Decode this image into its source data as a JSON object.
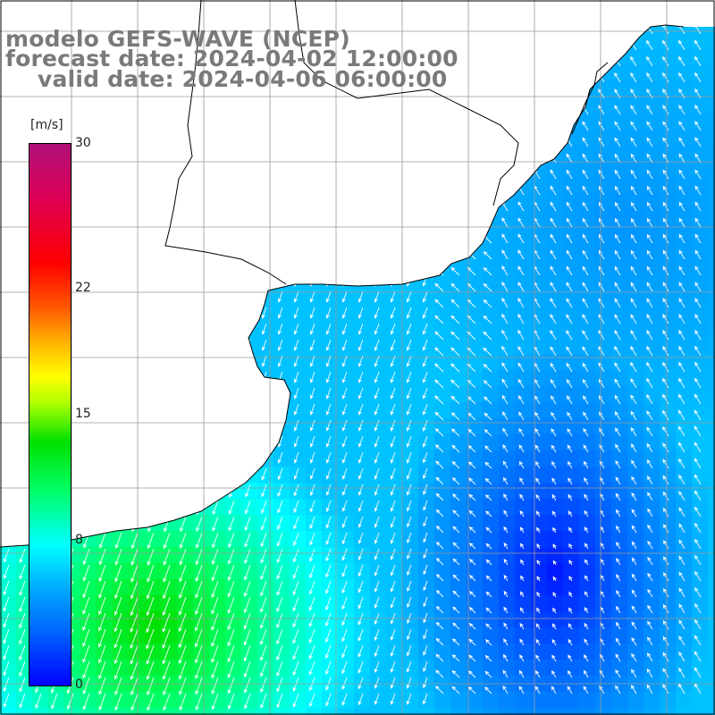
{
  "title": {
    "line1": "modelo GEFS-WAVE (NCEP)",
    "line2": "forecast date: 2024-04-02 12:00:00",
    "line3": "valid date: 2024-04-06 06:00:00"
  },
  "colorbar": {
    "unit": "[m/s]",
    "min": 0,
    "max": 30,
    "ticks": [
      {
        "label": "30",
        "value": 30
      },
      {
        "label": "22",
        "value": 22
      },
      {
        "label": "15",
        "value": 15
      },
      {
        "label": "8",
        "value": 8
      },
      {
        "label": "0",
        "value": 0
      }
    ]
  },
  "colors": {
    "land": "#ffffff",
    "grid": "#9a9a9a",
    "coast": "#000000",
    "arrow": "#ffffff",
    "title": "#7a7a7a"
  }
}
